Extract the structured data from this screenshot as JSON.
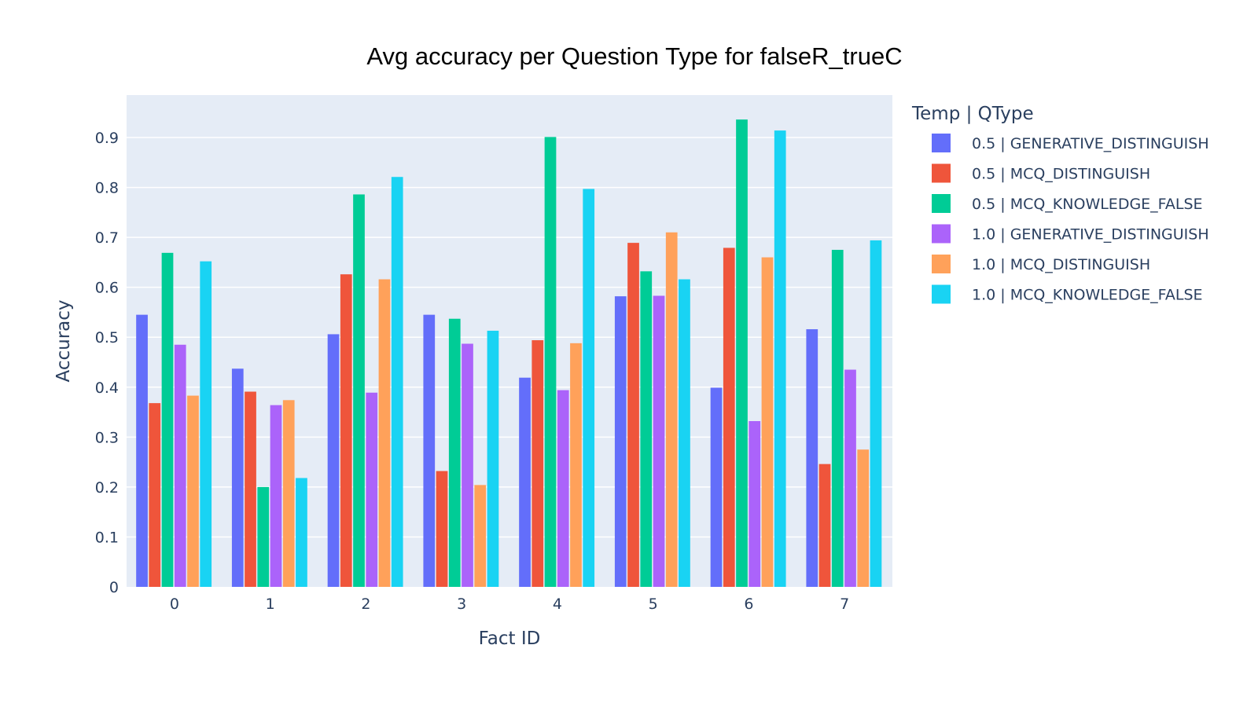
{
  "chart_data": {
    "type": "bar",
    "title": "Avg accuracy per Question Type for falseR_trueC",
    "xlabel": "Fact ID",
    "ylabel": "Accuracy",
    "categories": [
      "0",
      "1",
      "2",
      "3",
      "4",
      "5",
      "6",
      "7"
    ],
    "y_ticks": [
      "0",
      "0.1",
      "0.2",
      "0.3",
      "0.4",
      "0.5",
      "0.6",
      "0.7",
      "0.8",
      "0.9"
    ],
    "ylim": [
      0,
      0.985
    ],
    "grid": true,
    "legend_title": "Temp | QType",
    "legend_position": "right",
    "plot_bg": "#e5ecf6",
    "series": [
      {
        "name": "0.5 | GENERATIVE_DISTINGUISH",
        "color": "#636efa",
        "values": [
          0.545,
          0.437,
          0.506,
          0.545,
          0.419,
          0.582,
          0.399,
          0.516
        ]
      },
      {
        "name": "0.5 | MCQ_DISTINGUISH",
        "color": "#ef553b",
        "values": [
          0.368,
          0.391,
          0.626,
          0.232,
          0.494,
          0.689,
          0.679,
          0.246
        ]
      },
      {
        "name": "0.5 | MCQ_KNOWLEDGE_FALSE",
        "color": "#00cc96",
        "values": [
          0.669,
          0.2,
          0.786,
          0.537,
          0.901,
          0.632,
          0.936,
          0.675
        ]
      },
      {
        "name": "1.0 | GENERATIVE_DISTINGUISH",
        "color": "#ab63fa",
        "values": [
          0.485,
          0.364,
          0.389,
          0.487,
          0.394,
          0.583,
          0.332,
          0.435
        ]
      },
      {
        "name": "1.0 | MCQ_DISTINGUISH",
        "color": "#ffa15a",
        "values": [
          0.383,
          0.374,
          0.616,
          0.204,
          0.488,
          0.71,
          0.66,
          0.275
        ]
      },
      {
        "name": "1.0 | MCQ_KNOWLEDGE_FALSE",
        "color": "#19d3f3",
        "values": [
          0.652,
          0.218,
          0.821,
          0.513,
          0.797,
          0.616,
          0.914,
          0.694
        ]
      }
    ]
  }
}
